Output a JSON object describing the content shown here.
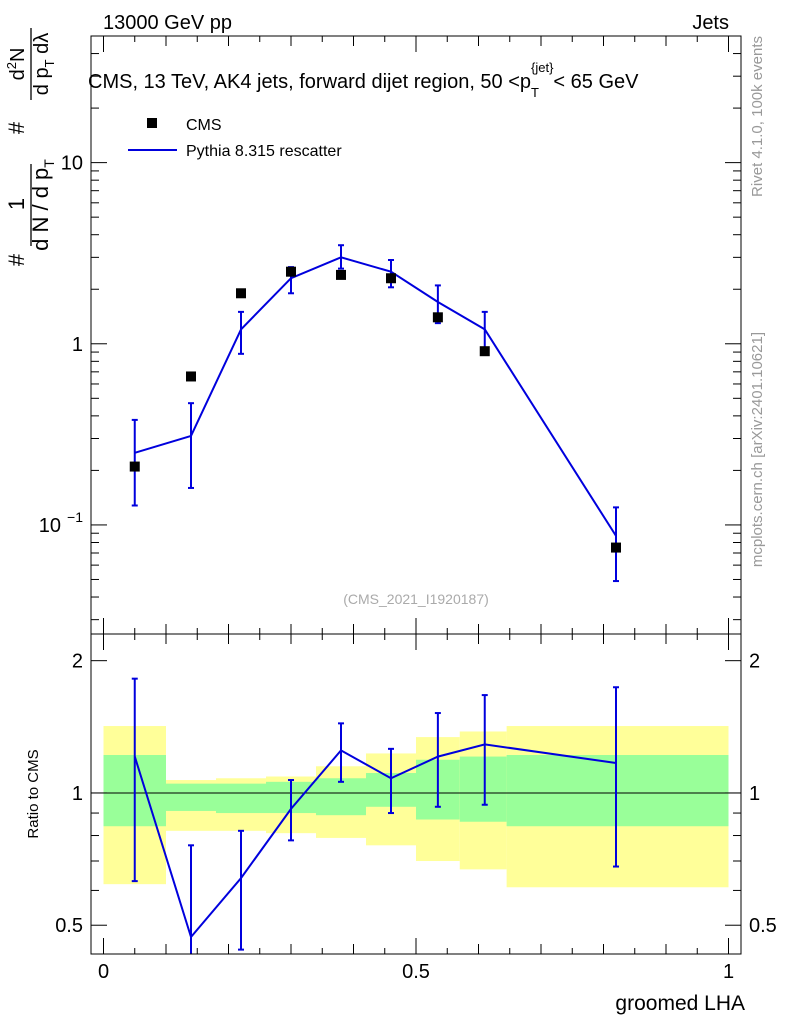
{
  "header": {
    "energy_label": "13000 GeV pp",
    "category_label": "Jets"
  },
  "side_labels": {
    "rivet": "Rivet 4.1.0,  100k events",
    "mcplots": "mcplots.cern.ch [arXiv:2401.10621]"
  },
  "chart_data": [
    {
      "type": "scatter",
      "panel": "main",
      "title": "CMS, 13 TeV, AK4 jets, forward dijet region, 50 <p_T^{jet}< 65 GeV",
      "title_parts": {
        "pre": "CMS, 13 TeV, AK4 jets, forward dijet region, 50 <p",
        "sub": "T",
        "sup": "{jet}",
        "post": "< 65 GeV"
      },
      "ylabel": "# 1/(dN/dp_T) # d2N/(dp_T dλ)",
      "ylabel_parts": {
        "hash": "#",
        "one": "1",
        "den": "d N / d p",
        "den_sub": "T",
        "num2": "d",
        "num2_sup": "2",
        "num2_rest": "N",
        "den2": "d p",
        "den2_sub": "T",
        "den2_rest": " dλ"
      },
      "yscale": "log",
      "ylim": [
        0.025,
        50
      ],
      "xlim": [
        -0.02,
        1.02
      ],
      "ytick_labels": [
        {
          "value": 10,
          "label": "10"
        },
        {
          "value": 1,
          "label": "1"
        },
        {
          "value": 0.1,
          "label": "10",
          "sup": "−1"
        }
      ],
      "analysis_id": "(CMS_2021_I1920187)",
      "legend": [
        {
          "name": "CMS",
          "marker": "square",
          "color": "#000000"
        },
        {
          "name": "Pythia 8.315 rescatter",
          "marker": "line",
          "color": "#0000dd"
        }
      ],
      "series": [
        {
          "name": "CMS",
          "x": [
            0.05,
            0.14,
            0.22,
            0.3,
            0.38,
            0.46,
            0.535,
            0.61,
            0.82
          ],
          "y": [
            0.21,
            0.66,
            1.9,
            2.5,
            2.4,
            2.3,
            1.4,
            0.91,
            0.075
          ],
          "color": "#000000"
        },
        {
          "name": "Pythia 8.315 rescatter",
          "x": [
            0.05,
            0.14,
            0.22,
            0.3,
            0.38,
            0.46,
            0.535,
            0.61,
            0.82
          ],
          "y": [
            0.25,
            0.31,
            1.2,
            2.3,
            3.0,
            2.5,
            1.7,
            1.2,
            0.087
          ],
          "yerr_low": [
            0.128,
            0.16,
            0.88,
            1.9,
            2.6,
            2.05,
            1.3,
            0.88,
            0.049
          ],
          "yerr_high": [
            0.38,
            0.47,
            1.5,
            2.65,
            3.5,
            2.9,
            2.1,
            1.5,
            0.125
          ],
          "color": "#0000dd"
        }
      ]
    },
    {
      "type": "line",
      "panel": "ratio",
      "ylabel": "Ratio to CMS",
      "xlabel": "groomed LHA",
      "yscale": "log",
      "ylim": [
        0.43,
        2.3
      ],
      "xlim": [
        -0.02,
        1.02
      ],
      "xtick_labels": [
        {
          "value": 0,
          "label": "0"
        },
        {
          "value": 0.5,
          "label": "0.5"
        },
        {
          "value": 1,
          "label": "1"
        }
      ],
      "ytick_labels": [
        {
          "value": 2,
          "label": "2"
        },
        {
          "value": 1,
          "label": "1"
        },
        {
          "value": 0.5,
          "label": "0.5"
        }
      ],
      "bands": {
        "bin_edges": [
          0,
          0.1,
          0.18,
          0.26,
          0.34,
          0.42,
          0.5,
          0.57,
          0.645,
          1.0
        ],
        "yellow_low": [
          0.62,
          0.82,
          0.82,
          0.81,
          0.79,
          0.76,
          0.7,
          0.67,
          0.61
        ],
        "yellow_high": [
          1.42,
          1.07,
          1.08,
          1.09,
          1.15,
          1.23,
          1.34,
          1.38,
          1.42
        ],
        "green_low": [
          0.84,
          0.91,
          0.9,
          0.9,
          0.89,
          0.93,
          0.87,
          0.86,
          0.84
        ],
        "green_high": [
          1.22,
          1.05,
          1.05,
          1.06,
          1.08,
          1.11,
          1.19,
          1.21,
          1.22
        ]
      },
      "series": [
        {
          "name": "Pythia 8.315 rescatter / CMS",
          "x": [
            0.05,
            0.14,
            0.22,
            0.3,
            0.38,
            0.46,
            0.535,
            0.61,
            0.82
          ],
          "y": [
            1.21,
            0.47,
            0.64,
            0.92,
            1.25,
            1.08,
            1.21,
            1.29,
            1.17
          ],
          "yerr_low": [
            0.63,
            0.42,
            0.44,
            0.78,
            1.06,
            0.9,
            0.93,
            0.94,
            0.68
          ],
          "yerr_high": [
            1.82,
            0.76,
            0.82,
            1.07,
            1.44,
            1.26,
            1.52,
            1.67,
            1.74
          ],
          "color": "#0000dd"
        }
      ]
    }
  ]
}
